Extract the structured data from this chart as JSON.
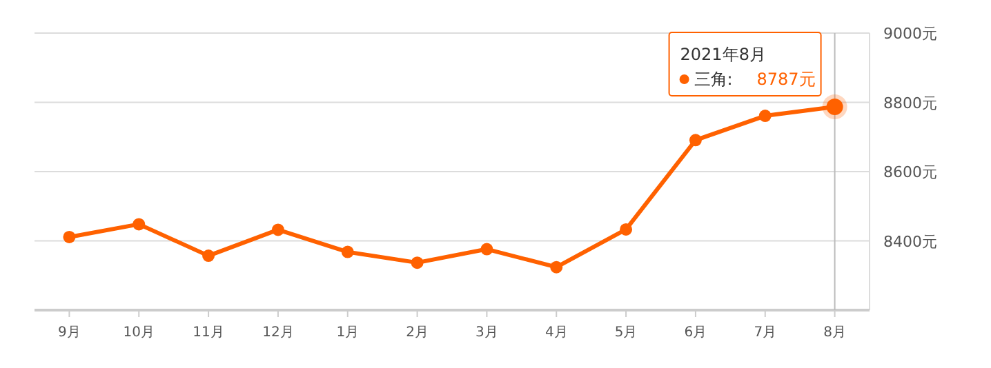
{
  "chart_data": {
    "type": "line",
    "categories": [
      "9月",
      "10月",
      "11月",
      "12月",
      "1月",
      "2月",
      "3月",
      "4月",
      "5月",
      "6月",
      "7月",
      "8月"
    ],
    "series": [
      {
        "name": "三角:",
        "color": "#ff6100",
        "values": [
          8411,
          8448,
          8357,
          8432,
          8368,
          8337,
          8376,
          8324,
          8433,
          8691,
          8761,
          8787
        ],
        "value_labels": [
          null,
          null,
          null,
          null,
          null,
          null,
          null,
          null,
          null,
          null,
          null,
          "8787元"
        ]
      }
    ],
    "ylim": [
      8200,
      9000
    ],
    "yticks": [
      {
        "value": 8400,
        "label": "8400元"
      },
      {
        "value": 8600,
        "label": "8600元"
      },
      {
        "value": 8800,
        "label": "8800元"
      },
      {
        "value": 9000,
        "label": "9000元"
      }
    ],
    "grid": "y",
    "marker": "circle",
    "line_style": "solid",
    "ref_lines": [
      {
        "axis": "x",
        "value": "8月",
        "color": "#bbbbbb"
      }
    ],
    "annotations": [
      "2021年8月"
    ]
  }
}
